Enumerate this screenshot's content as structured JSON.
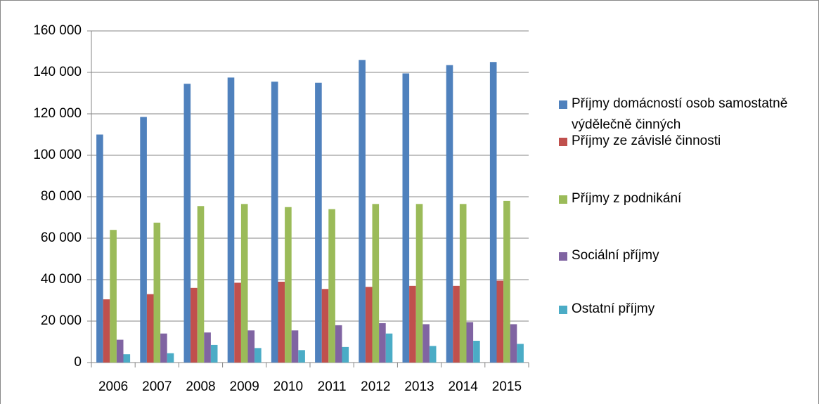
{
  "chart_data": {
    "type": "bar",
    "categories": [
      "2006",
      "2007",
      "2008",
      "2009",
      "2010",
      "2011",
      "2012",
      "2013",
      "2014",
      "2015"
    ],
    "series": [
      {
        "name": "Příjmy domácností osob samostatně výdělečně činných",
        "color": "#4f81bd",
        "values": [
          110000,
          118500,
          134500,
          137500,
          135500,
          135000,
          146000,
          139500,
          143500,
          145000
        ]
      },
      {
        "name": "Příjmy ze závislé činnosti",
        "color": "#c0504d",
        "values": [
          30500,
          33000,
          36000,
          38500,
          39000,
          35500,
          36500,
          37000,
          37000,
          39500
        ]
      },
      {
        "name": "Příjmy z podnikání",
        "color": "#9bbb59",
        "values": [
          64000,
          67500,
          75500,
          76500,
          75000,
          74000,
          76500,
          76500,
          76500,
          78000
        ]
      },
      {
        "name": "Sociální příjmy",
        "color": "#8064a2",
        "values": [
          11000,
          14000,
          14500,
          15500,
          15500,
          18000,
          19000,
          18500,
          19500,
          18500
        ]
      },
      {
        "name": "Ostatní příjmy",
        "color": "#4bacc6",
        "values": [
          4000,
          4500,
          8500,
          7000,
          6000,
          7500,
          14000,
          8000,
          10500,
          9000
        ]
      }
    ],
    "ylim": [
      0,
      160000
    ],
    "yticks": [
      0,
      {
        "value": 20000,
        "label": "20 000"
      },
      {
        "value": 40000,
        "label": "40 000"
      },
      {
        "value": 60000,
        "label": "60 000"
      },
      {
        "value": 80000,
        "label": "80 000"
      },
      {
        "value": 100000,
        "label": "100 000"
      },
      {
        "value": 120000,
        "label": "120 000"
      },
      {
        "value": 140000,
        "label": "140 000"
      },
      {
        "value": 160000,
        "label": "160 000"
      }
    ],
    "grid": true,
    "legend": "right"
  }
}
